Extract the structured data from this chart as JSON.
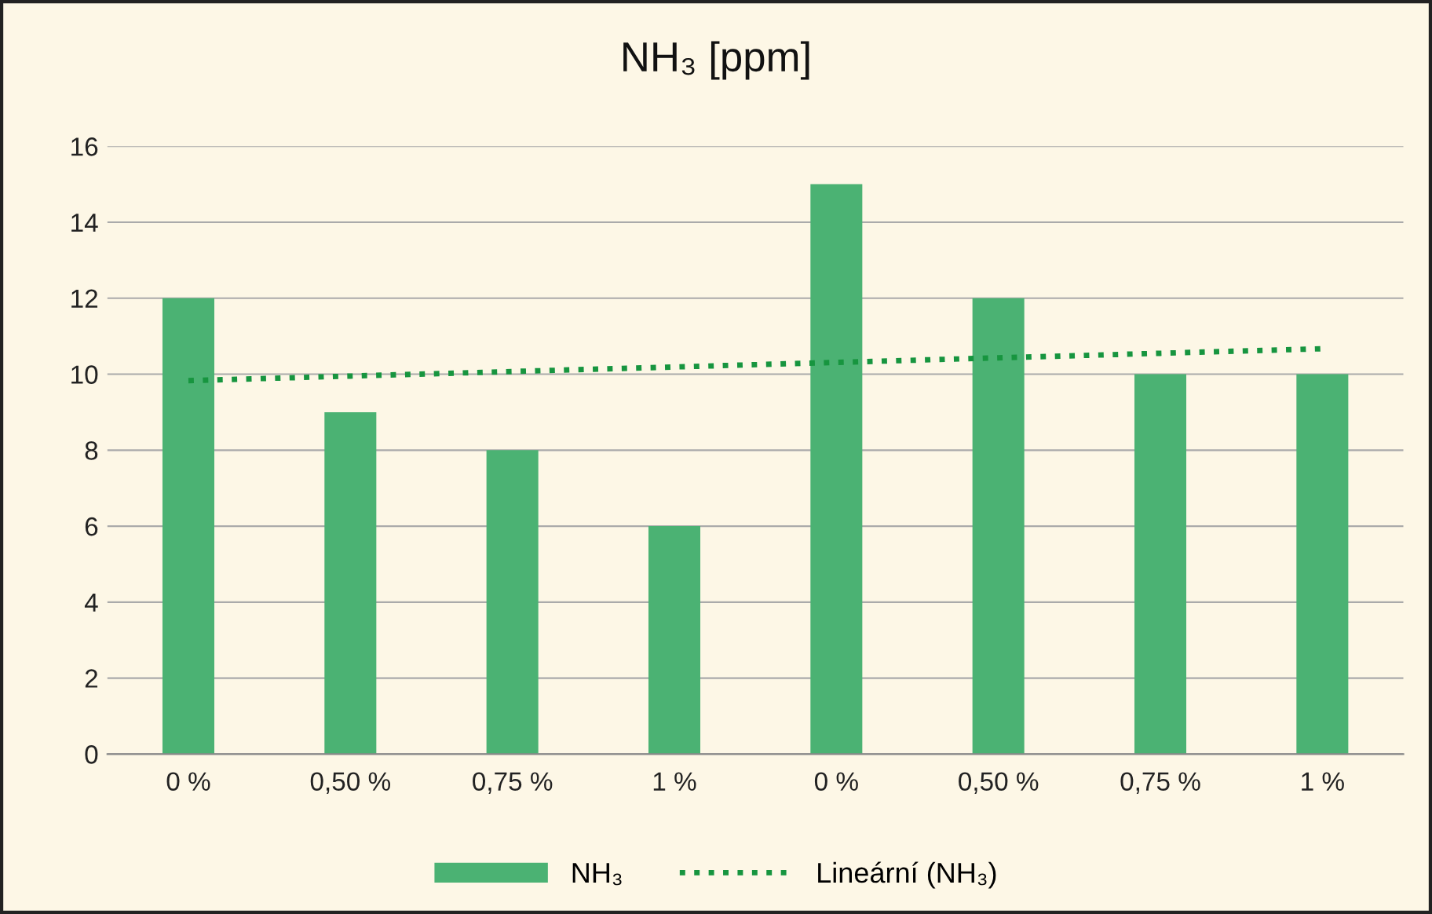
{
  "chart_data": {
    "type": "bar",
    "title": "NH₃ [ppm]",
    "categories": [
      "0 %",
      "0,50 %",
      "0,75 %",
      "1 %",
      "0 %",
      "0,50 %",
      "0,75 %",
      "1 %"
    ],
    "series": [
      {
        "name": "NH₃",
        "color": "#4bb273",
        "values": [
          12,
          9,
          8,
          6,
          15,
          12,
          10,
          10
        ]
      },
      {
        "name": "Lineární (NH₃)",
        "type": "line",
        "color": "#17953f",
        "line_style": "dotted",
        "values": [
          9.83,
          9.95,
          10.07,
          10.19,
          10.31,
          10.43,
          10.55,
          10.67
        ]
      }
    ],
    "ylim": [
      0,
      16
    ],
    "yticks": [
      0,
      2,
      4,
      6,
      8,
      10,
      12,
      14,
      16
    ],
    "grid": "y",
    "legend": "bottom"
  }
}
